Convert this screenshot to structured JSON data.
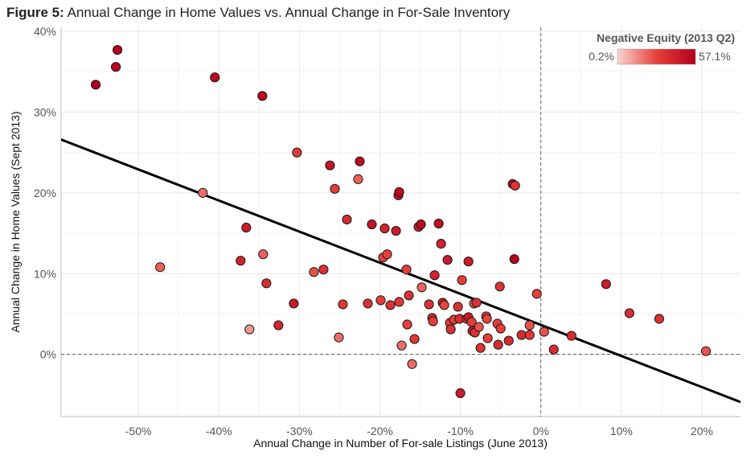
{
  "title": {
    "prefix": "Figure 5:",
    "text": "Annual Change in Home Values vs. Annual Change in For-Sale Inventory"
  },
  "chart_data": {
    "type": "scatter",
    "title": "Annual Change in Home Values vs. Annual Change in For-Sale Inventory",
    "xlabel": "Annual Change in Number of For-sale Listings (June 2013)",
    "ylabel": "Annual Change in Home Values (Sept 2013)",
    "xlim": [
      -0.596,
      0.248
    ],
    "ylim": [
      -0.077,
      0.405
    ],
    "xticks": [
      -0.5,
      -0.4,
      -0.3,
      -0.2,
      -0.1,
      0.0,
      0.1,
      0.2
    ],
    "xtick_labels": [
      "-50%",
      "-40%",
      "-30%",
      "-20%",
      "-10%",
      "0%",
      "10%",
      "20%"
    ],
    "yticks": [
      0.0,
      0.1,
      0.2,
      0.3,
      0.4
    ],
    "ytick_labels": [
      "0%",
      "10%",
      "20%",
      "30%",
      "40%"
    ],
    "grid": true,
    "reference_lines": {
      "x": 0,
      "y": 0
    },
    "trend_line": {
      "x": [
        -0.596,
        0.248
      ],
      "y": [
        0.266,
        -0.059
      ]
    },
    "legend": {
      "title": "Negative Equity (2013 Q2)",
      "min_label": "0.2%",
      "max_label": "57.1%",
      "min_color": "#f8d4d0",
      "max_color": "#b2001c",
      "placement": "top-right"
    },
    "series": [
      {
        "points": [
          {
            "x": -0.553,
            "y": 0.334,
            "c": 0.57
          },
          {
            "x": -0.528,
            "y": 0.356,
            "c": 0.55
          },
          {
            "x": -0.526,
            "y": 0.377,
            "c": 0.56
          },
          {
            "x": -0.405,
            "y": 0.343,
            "c": 0.52
          },
          {
            "x": -0.346,
            "y": 0.32,
            "c": 0.53
          },
          {
            "x": -0.473,
            "y": 0.108,
            "c": 0.22
          },
          {
            "x": -0.42,
            "y": 0.2,
            "c": 0.2
          },
          {
            "x": -0.373,
            "y": 0.116,
            "c": 0.42
          },
          {
            "x": -0.366,
            "y": 0.157,
            "c": 0.45
          },
          {
            "x": -0.362,
            "y": 0.031,
            "c": 0.12
          },
          {
            "x": -0.345,
            "y": 0.124,
            "c": 0.22
          },
          {
            "x": -0.341,
            "y": 0.088,
            "c": 0.38
          },
          {
            "x": -0.326,
            "y": 0.036,
            "c": 0.4
          },
          {
            "x": -0.307,
            "y": 0.063,
            "c": 0.45
          },
          {
            "x": -0.303,
            "y": 0.25,
            "c": 0.32
          },
          {
            "x": -0.282,
            "y": 0.102,
            "c": 0.25
          },
          {
            "x": -0.27,
            "y": 0.105,
            "c": 0.35
          },
          {
            "x": -0.262,
            "y": 0.234,
            "c": 0.48
          },
          {
            "x": -0.256,
            "y": 0.205,
            "c": 0.3
          },
          {
            "x": -0.251,
            "y": 0.021,
            "c": 0.2
          },
          {
            "x": -0.246,
            "y": 0.062,
            "c": 0.32
          },
          {
            "x": -0.241,
            "y": 0.167,
            "c": 0.38
          },
          {
            "x": -0.227,
            "y": 0.217,
            "c": 0.22
          },
          {
            "x": -0.225,
            "y": 0.239,
            "c": 0.52
          },
          {
            "x": -0.215,
            "y": 0.063,
            "c": 0.35
          },
          {
            "x": -0.21,
            "y": 0.161,
            "c": 0.48
          },
          {
            "x": -0.199,
            "y": 0.067,
            "c": 0.3
          },
          {
            "x": -0.196,
            "y": 0.12,
            "c": 0.28
          },
          {
            "x": -0.194,
            "y": 0.156,
            "c": 0.4
          },
          {
            "x": -0.191,
            "y": 0.124,
            "c": 0.28
          },
          {
            "x": -0.187,
            "y": 0.061,
            "c": 0.35
          },
          {
            "x": -0.18,
            "y": 0.153,
            "c": 0.45
          },
          {
            "x": -0.177,
            "y": 0.197,
            "c": 0.5
          },
          {
            "x": -0.176,
            "y": 0.201,
            "c": 0.52
          },
          {
            "x": -0.176,
            "y": 0.065,
            "c": 0.32
          },
          {
            "x": -0.173,
            "y": 0.011,
            "c": 0.2
          },
          {
            "x": -0.167,
            "y": 0.105,
            "c": 0.3
          },
          {
            "x": -0.166,
            "y": 0.037,
            "c": 0.3
          },
          {
            "x": -0.164,
            "y": 0.073,
            "c": 0.35
          },
          {
            "x": -0.16,
            "y": -0.012,
            "c": 0.2
          },
          {
            "x": -0.157,
            "y": 0.019,
            "c": 0.32
          },
          {
            "x": -0.152,
            "y": 0.158,
            "c": 0.45
          },
          {
            "x": -0.149,
            "y": 0.161,
            "c": 0.52
          },
          {
            "x": -0.148,
            "y": 0.083,
            "c": 0.22
          },
          {
            "x": -0.139,
            "y": 0.062,
            "c": 0.35
          },
          {
            "x": -0.135,
            "y": 0.045,
            "c": 0.4
          },
          {
            "x": -0.134,
            "y": 0.041,
            "c": 0.3
          },
          {
            "x": -0.132,
            "y": 0.098,
            "c": 0.42
          },
          {
            "x": -0.127,
            "y": 0.162,
            "c": 0.5
          },
          {
            "x": -0.124,
            "y": 0.137,
            "c": 0.42
          },
          {
            "x": -0.122,
            "y": 0.064,
            "c": 0.45
          },
          {
            "x": -0.12,
            "y": 0.061,
            "c": 0.28
          },
          {
            "x": -0.116,
            "y": 0.117,
            "c": 0.45
          },
          {
            "x": -0.113,
            "y": 0.039,
            "c": 0.3
          },
          {
            "x": -0.112,
            "y": 0.031,
            "c": 0.35
          },
          {
            "x": -0.108,
            "y": 0.043,
            "c": 0.3
          },
          {
            "x": -0.103,
            "y": 0.059,
            "c": 0.35
          },
          {
            "x": -0.101,
            "y": 0.044,
            "c": 0.38
          },
          {
            "x": -0.1,
            "y": -0.048,
            "c": 0.45
          },
          {
            "x": -0.098,
            "y": 0.092,
            "c": 0.3
          },
          {
            "x": -0.092,
            "y": 0.044,
            "c": 0.32
          },
          {
            "x": -0.09,
            "y": 0.046,
            "c": 0.45
          },
          {
            "x": -0.09,
            "y": 0.115,
            "c": 0.45
          },
          {
            "x": -0.086,
            "y": 0.04,
            "c": 0.3
          },
          {
            "x": -0.085,
            "y": 0.029,
            "c": 0.45
          },
          {
            "x": -0.083,
            "y": 0.063,
            "c": 0.25
          },
          {
            "x": -0.082,
            "y": 0.027,
            "c": 0.35
          },
          {
            "x": -0.08,
            "y": 0.064,
            "c": 0.35
          },
          {
            "x": -0.077,
            "y": 0.034,
            "c": 0.25
          },
          {
            "x": -0.075,
            "y": 0.008,
            "c": 0.35
          },
          {
            "x": -0.068,
            "y": 0.047,
            "c": 0.3
          },
          {
            "x": -0.067,
            "y": 0.044,
            "c": 0.28
          },
          {
            "x": -0.066,
            "y": 0.02,
            "c": 0.3
          },
          {
            "x": -0.054,
            "y": 0.038,
            "c": 0.3
          },
          {
            "x": -0.053,
            "y": 0.012,
            "c": 0.38
          },
          {
            "x": -0.051,
            "y": 0.084,
            "c": 0.35
          },
          {
            "x": -0.05,
            "y": 0.032,
            "c": 0.3
          },
          {
            "x": -0.04,
            "y": 0.017,
            "c": 0.38
          },
          {
            "x": -0.035,
            "y": 0.211,
            "c": 0.55
          },
          {
            "x": -0.033,
            "y": 0.118,
            "c": 0.55
          },
          {
            "x": -0.032,
            "y": 0.209,
            "c": 0.35
          },
          {
            "x": -0.024,
            "y": 0.024,
            "c": 0.38
          },
          {
            "x": -0.014,
            "y": 0.024,
            "c": 0.32
          },
          {
            "x": -0.014,
            "y": 0.036,
            "c": 0.25
          },
          {
            "x": -0.005,
            "y": 0.075,
            "c": 0.3
          },
          {
            "x": 0.004,
            "y": 0.028,
            "c": 0.25
          },
          {
            "x": 0.016,
            "y": 0.006,
            "c": 0.38
          },
          {
            "x": 0.038,
            "y": 0.023,
            "c": 0.38
          },
          {
            "x": 0.081,
            "y": 0.087,
            "c": 0.45
          },
          {
            "x": 0.11,
            "y": 0.051,
            "c": 0.38
          },
          {
            "x": 0.147,
            "y": 0.044,
            "c": 0.35
          },
          {
            "x": 0.205,
            "y": 0.004,
            "c": 0.25
          }
        ]
      }
    ]
  }
}
